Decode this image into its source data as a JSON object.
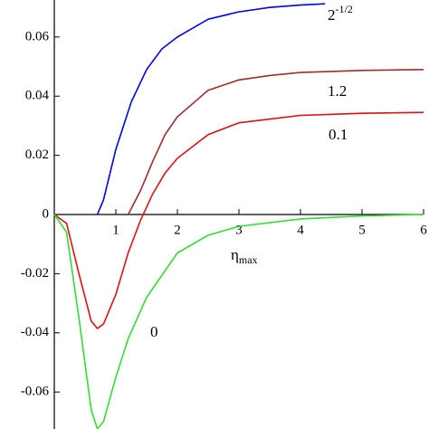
{
  "chart_data": {
    "type": "line",
    "x_label": "η",
    "x_label_subscript": "max",
    "xlim": [
      0,
      6
    ],
    "ylim": [
      -0.0725,
      0.0725
    ],
    "xticks": [
      1,
      2,
      3,
      4,
      5,
      6
    ],
    "yticks": [
      -0.06,
      -0.04,
      -0.02,
      0,
      0.02,
      0.04,
      0.06
    ],
    "series": [
      {
        "name": "2",
        "name_superscript": "-1/2",
        "color": "#0000ee",
        "x": [
          0.7,
          0.8,
          1,
          1.25,
          1.5,
          1.75,
          2,
          2.5,
          3,
          3.5,
          4,
          4.4
        ],
        "values": [
          0,
          0.005,
          0.022,
          0.038,
          0.049,
          0.056,
          0.06,
          0.066,
          0.0685,
          0.07,
          0.0708,
          0.0712
        ]
      },
      {
        "name": "1.2",
        "color": "#a52a2a",
        "x": [
          1.2,
          1.4,
          1.6,
          1.8,
          2,
          2.5,
          3,
          3.5,
          4,
          5,
          6
        ],
        "values": [
          0,
          0.008,
          0.018,
          0.027,
          0.033,
          0.042,
          0.0455,
          0.047,
          0.048,
          0.0487,
          0.049
        ]
      },
      {
        "name": "0.1",
        "color": "#dd1111",
        "x": [
          0,
          0.2,
          0.4,
          0.6,
          0.7,
          0.8,
          1,
          1.2,
          1.4,
          1.6,
          1.8,
          2,
          2.5,
          3,
          4,
          5,
          6
        ],
        "values": [
          0,
          -0.003,
          -0.02,
          -0.036,
          -0.0385,
          -0.037,
          -0.027,
          -0.013,
          -0.002,
          0.007,
          0.014,
          0.019,
          0.027,
          0.031,
          0.0335,
          0.0342,
          0.0345
        ]
      },
      {
        "name": "0",
        "color": "#33dd33",
        "x": [
          0,
          0.2,
          0.4,
          0.6,
          0.7,
          0.8,
          1,
          1.2,
          1.5,
          2,
          2.5,
          3,
          4,
          5,
          6
        ],
        "values": [
          0,
          -0.006,
          -0.035,
          -0.066,
          -0.0725,
          -0.07,
          -0.055,
          -0.042,
          -0.028,
          -0.013,
          -0.007,
          -0.004,
          -0.0015,
          -0.0005,
          0
        ]
      }
    ]
  }
}
